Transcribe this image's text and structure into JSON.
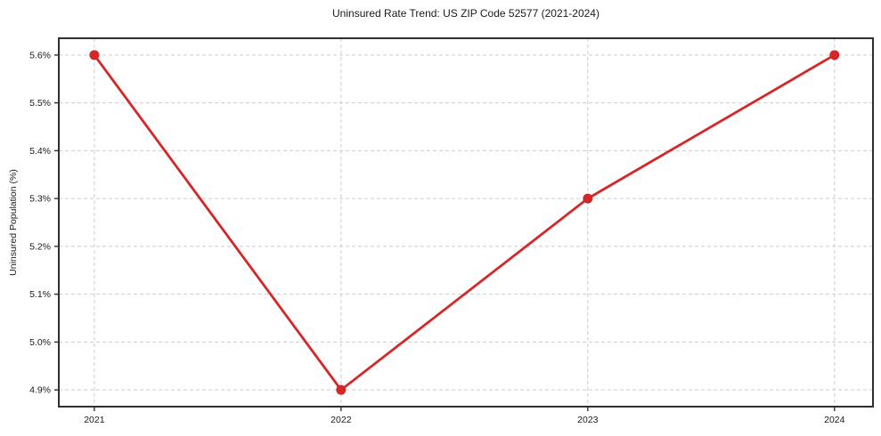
{
  "chart_data": {
    "type": "line",
    "title": "Uninsured Rate Trend: US ZIP Code 52577 (2021-2024)",
    "xlabel": "",
    "ylabel": "Uninsured Population (%)",
    "x": [
      2021,
      2022,
      2023,
      2024
    ],
    "values": [
      5.6,
      4.9,
      5.3,
      5.6
    ],
    "xtick_labels": [
      "2021",
      "2022",
      "2023",
      "2024"
    ],
    "yticks": [
      4.9,
      5.0,
      5.1,
      5.2,
      5.3,
      5.4,
      5.5,
      5.6
    ],
    "ytick_labels": [
      "4.9%",
      "5.0%",
      "5.1%",
      "5.2%",
      "5.3%",
      "5.4%",
      "5.5%",
      "5.6%"
    ],
    "xlim": [
      2020.856,
      2024.156
    ],
    "ylim": [
      4.865,
      5.635
    ],
    "grid": "dashed-both-axes",
    "legend": "none",
    "marker": "circle",
    "line_color": "#d62728",
    "marker_color": "#d62728",
    "grid_color": "#cccccc",
    "axis_color": "#2f2f2f",
    "text_color": "#1a1a1a",
    "background_color": "#ffffff"
  }
}
